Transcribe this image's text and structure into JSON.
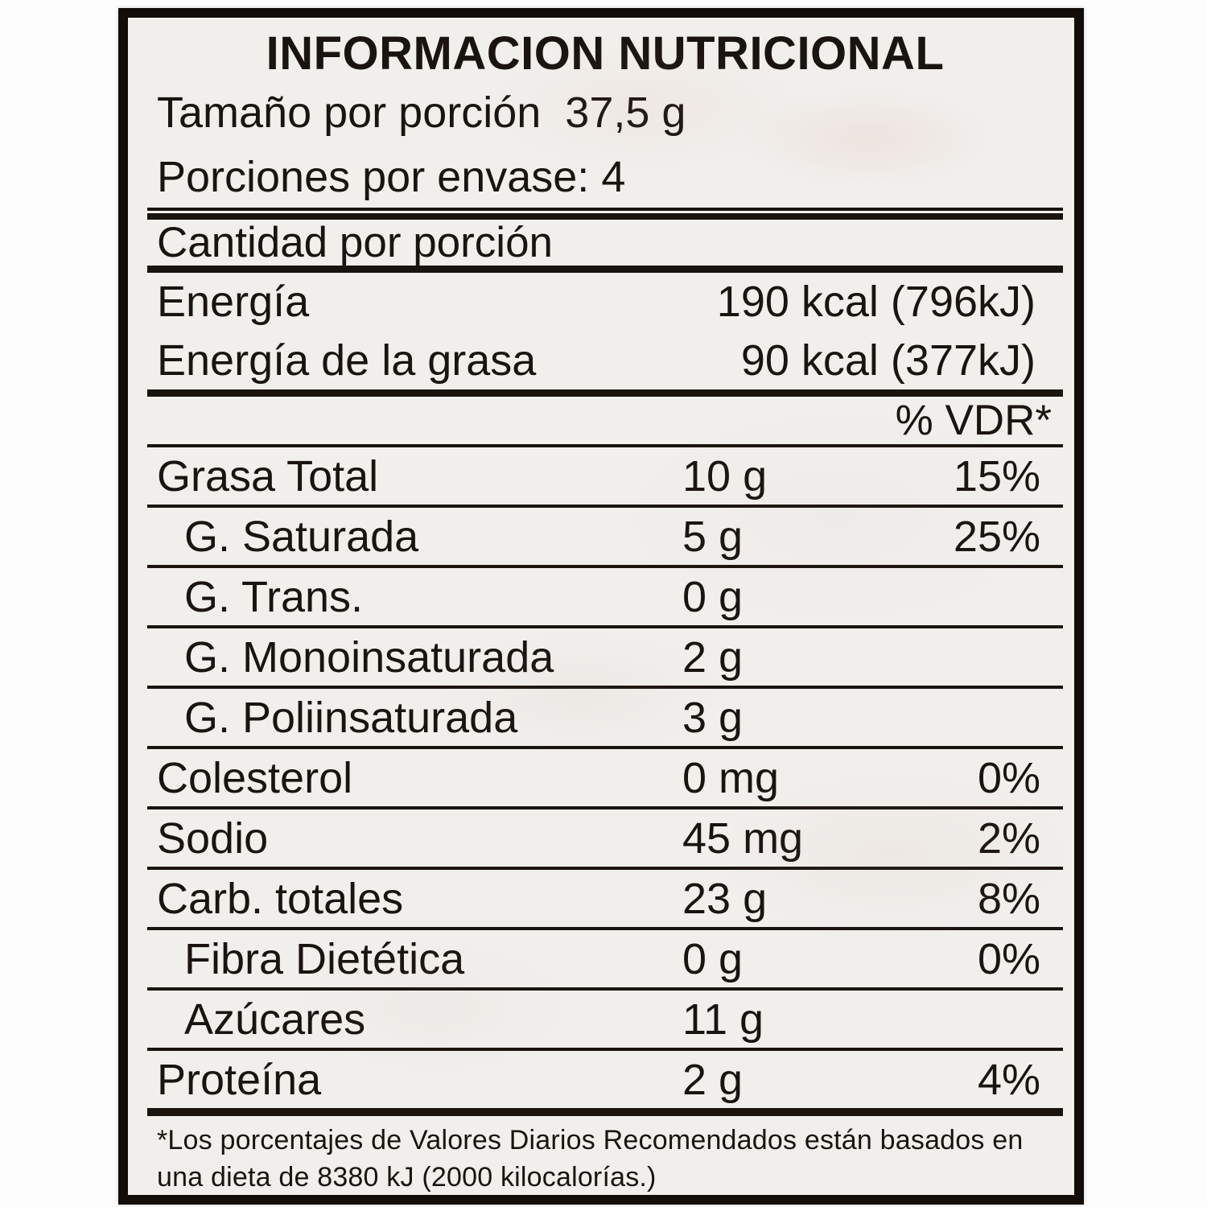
{
  "label": {
    "title": "INFORMACION NUTRICIONAL",
    "serving_size": {
      "label": "Tamaño por porción",
      "value": "37,5 g"
    },
    "servings_per_container": {
      "label": "Porciones por envase:",
      "value": "4"
    },
    "amount_header": "Cantidad por porción",
    "energy_rows": [
      {
        "label": "Energía",
        "value": "190 kcal (796kJ)"
      },
      {
        "label": "Energía de la grasa",
        "value": "90 kcal (377kJ)"
      }
    ],
    "dv_header": "% VDR*",
    "nutrients": [
      {
        "label": "Grasa Total",
        "amount": "10 g",
        "dv": "15%",
        "indent": false
      },
      {
        "label": "G. Saturada",
        "amount": "5 g",
        "dv": "25%",
        "indent": true
      },
      {
        "label": "G. Trans.",
        "amount": "0 g",
        "dv": "",
        "indent": true
      },
      {
        "label": "G. Monoinsaturada",
        "amount": "2 g",
        "dv": "",
        "indent": true
      },
      {
        "label": "G. Poliinsaturada",
        "amount": "3 g",
        "dv": "",
        "indent": true
      },
      {
        "label": "Colesterol",
        "amount": "0 mg",
        "dv": "0%",
        "indent": false
      },
      {
        "label": "Sodio",
        "amount": "45 mg",
        "dv": "2%",
        "indent": false
      },
      {
        "label": "Carb. totales",
        "amount": "23 g",
        "dv": "8%",
        "indent": false
      },
      {
        "label": "Fibra Dietética",
        "amount": "0 g",
        "dv": "0%",
        "indent": true
      },
      {
        "label": "Azúcares",
        "amount": "11 g",
        "dv": "",
        "indent": true
      },
      {
        "label": "Proteína",
        "amount": "2 g",
        "dv": "4%",
        "indent": false
      }
    ],
    "footnote_line1": "*Los porcentajes de Valores Diarios Recomendados están basados en",
    "footnote_line2": "una dieta de 8380 kJ (2000 kilocalorías.)",
    "colors": {
      "text": "#1a1410",
      "paper": "#f1efec",
      "rule": "#1a140f",
      "photo_background": "#fdfdfd"
    }
  }
}
